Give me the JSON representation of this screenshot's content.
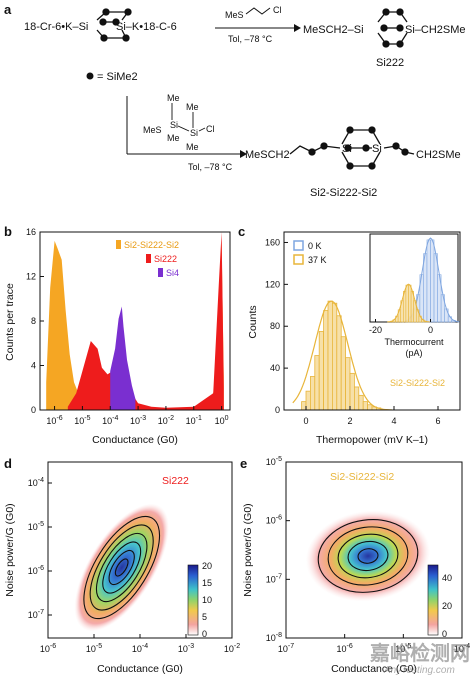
{
  "figure": {
    "panel_labels": [
      "a",
      "b",
      "c",
      "d",
      "e"
    ],
    "scheme": {
      "reactant_top": "18-Cr-6•K–Si",
      "reactant_top_right": "Si–K•18-C-6",
      "reagent_1": "MeS",
      "reagent_1_cl": "Cl",
      "conditions_1": "Tol, –78 °C",
      "product_1_left": "MeSCH2–Si",
      "product_1_right": "Si–CH2SMe",
      "product_1_name": "Si222",
      "legend_dot": "= SiMe2",
      "reagent_2_mes": "MeS",
      "reagent_2_si1": "Si",
      "reagent_2_si2": "Si",
      "reagent_2_me": [
        "Me",
        "Me",
        "Me",
        "Me"
      ],
      "reagent_2_cl": "Cl",
      "conditions_2": "Tol, –78 °C",
      "product_2_left": "MeSCH2",
      "product_2_si_left": "Si",
      "product_2_si_right": "Si",
      "product_2_right": "CH2SMe",
      "product_2_name": "Si2-Si222-Si2"
    },
    "panel_b": {
      "ylabel": "Counts per trace",
      "xlabel": "Conductance (G0)",
      "legend": [
        "Si2-Si222-Si2",
        "Si222",
        "Si4"
      ],
      "colors": [
        "#f5a623",
        "#ee1c1c",
        "#7a2fd0"
      ]
    },
    "panel_c": {
      "ylabel": "Counts",
      "xlabel": "Thermopower (mV K–1)",
      "legend": [
        "0 K",
        "37 K"
      ],
      "colors": [
        "#7fa6e0",
        "#e8b53a"
      ],
      "annotation": "Si2-Si222-Si2",
      "inset_xlabel": "Thermocurrent",
      "inset_xunit": "(pA)"
    },
    "panel_d": {
      "ylabel": "Noise power/G (G0)",
      "xlabel": "Conductance (G0)",
      "annotation": "Si222",
      "colorbar_ticks": [
        "20",
        "15",
        "10",
        "5",
        "0"
      ]
    },
    "panel_e": {
      "ylabel": "Noise power/G (G0)",
      "xlabel": "Conductance (G0)",
      "annotation": "Si2-Si222-Si2",
      "colorbar_ticks": [
        "40",
        "20",
        "0"
      ]
    },
    "watermark": [
      "嘉峪检测网",
      "AnyTesting.com"
    ]
  },
  "chart_data": [
    {
      "type": "area",
      "panel": "b",
      "xlabel": "Conductance (G0)",
      "ylabel": "Counts per trace",
      "xscale": "log",
      "xlim": [
        3e-07,
        2
      ],
      "ylim": [
        0,
        16
      ],
      "xticks": [
        "10^-6",
        "10^-5",
        "10^-4",
        "10^-3",
        "10^-2",
        "10^-1",
        "10^0"
      ],
      "yticks": [
        0,
        4,
        8,
        12,
        16
      ],
      "legend_position": "top-right",
      "series": [
        {
          "name": "Si2-Si222-Si2",
          "color": "#f5a623",
          "x": [
            5e-07,
            7e-07,
            1e-06,
            1.3e-06,
            1.8e-06,
            2.5e-06,
            3.5e-06,
            5e-06,
            8e-06,
            1.2e-05,
            3e-05,
            0.0001,
            0.01,
            0.3,
            0.6,
            1.0,
            1.2
          ],
          "y": [
            2.5,
            11,
            15.2,
            14.5,
            13.5,
            9,
            5,
            2.5,
            1.2,
            0.5,
            0.2,
            0.1,
            0.1,
            0.3,
            2,
            15,
            3
          ]
        },
        {
          "name": "Si222",
          "color": "#ee1c1c",
          "x": [
            3e-06,
            6e-06,
            1e-05,
            2e-05,
            3.5e-05,
            5e-05,
            8e-05,
            0.00012,
            0.0002,
            0.0003,
            0.0005,
            0.001,
            0.003,
            0.01,
            0.1,
            0.5,
            0.8,
            1.0,
            1.2
          ],
          "y": [
            0.3,
            1.5,
            3.5,
            6.2,
            5.5,
            3.8,
            3.2,
            3.5,
            3.2,
            2.8,
            1.8,
            0.6,
            0.3,
            0.2,
            0.3,
            1.5,
            11.5,
            16,
            2
          ]
        },
        {
          "name": "Si4",
          "color": "#7a2fd0",
          "x": [
            0.0001,
            0.00015,
            0.0002,
            0.00026,
            0.0003,
            0.0004,
            0.0006,
            0.0008
          ],
          "y": [
            3.5,
            5.5,
            8.2,
            9.3,
            7.5,
            4.5,
            2.2,
            1
          ]
        }
      ]
    },
    {
      "type": "bar",
      "panel": "c",
      "xlabel": "Thermopower (mV K–1)",
      "ylabel": "Counts",
      "xlim": [
        -1,
        7
      ],
      "ylim": [
        0,
        170
      ],
      "xticks": [
        0,
        2,
        4,
        6
      ],
      "yticks": [
        0,
        40,
        80,
        120,
        160
      ],
      "legend_position": "top-left",
      "series": [
        {
          "name": "37 K",
          "color": "#e8b53a",
          "x": [
            -0.1,
            0.1,
            0.3,
            0.5,
            0.7,
            0.9,
            1.1,
            1.3,
            1.5,
            1.7,
            1.9,
            2.1,
            2.3,
            2.5,
            2.7,
            2.9,
            3.1,
            3.3
          ],
          "values": [
            8,
            18,
            32,
            52,
            75,
            95,
            104,
            102,
            90,
            70,
            50,
            35,
            22,
            14,
            8,
            5,
            3,
            2
          ]
        }
      ],
      "inset": {
        "xlabel": "Thermocurrent (pA)",
        "xlim": [
          -22,
          10
        ],
        "xticks": [
          -20,
          0
        ],
        "series": [
          {
            "name": "0 K",
            "color": "#7fa6e0",
            "mean": 0,
            "peak": 1.0
          },
          {
            "name": "37 K",
            "color": "#e8b53a",
            "mean": -8,
            "peak": 0.45
          }
        ]
      }
    },
    {
      "type": "heatmap",
      "panel": "d",
      "xlabel": "Conductance (G0)",
      "ylabel": "Noise power/G (G0)",
      "xscale": "log",
      "yscale": "log",
      "xlim": [
        1e-06,
        0.01
      ],
      "ylim": [
        3e-08,
        0.0003
      ],
      "xticks": [
        "10^-6",
        "10^-5",
        "10^-4",
        "10^-3",
        "10^-2"
      ],
      "yticks": [
        "10^-7",
        "10^-6",
        "10^-5",
        "10^-4"
      ],
      "colorbar_range": [
        0,
        20
      ],
      "center": [
        4e-05,
        1.2e-06
      ]
    },
    {
      "type": "heatmap",
      "panel": "e",
      "xlabel": "Conductance (G0)",
      "ylabel": "Noise power/G (G0)",
      "xscale": "log",
      "yscale": "log",
      "xlim": [
        1e-07,
        0.0001
      ],
      "ylim": [
        1e-08,
        1e-05
      ],
      "xticks": [
        "10^-7",
        "10^-6",
        "10^-5",
        "10^-4"
      ],
      "yticks": [
        "10^-8",
        "10^-7",
        "10^-6",
        "10^-5"
      ],
      "colorbar_range": [
        0,
        40
      ],
      "center": [
        2.5e-06,
        2.5e-07
      ]
    }
  ]
}
